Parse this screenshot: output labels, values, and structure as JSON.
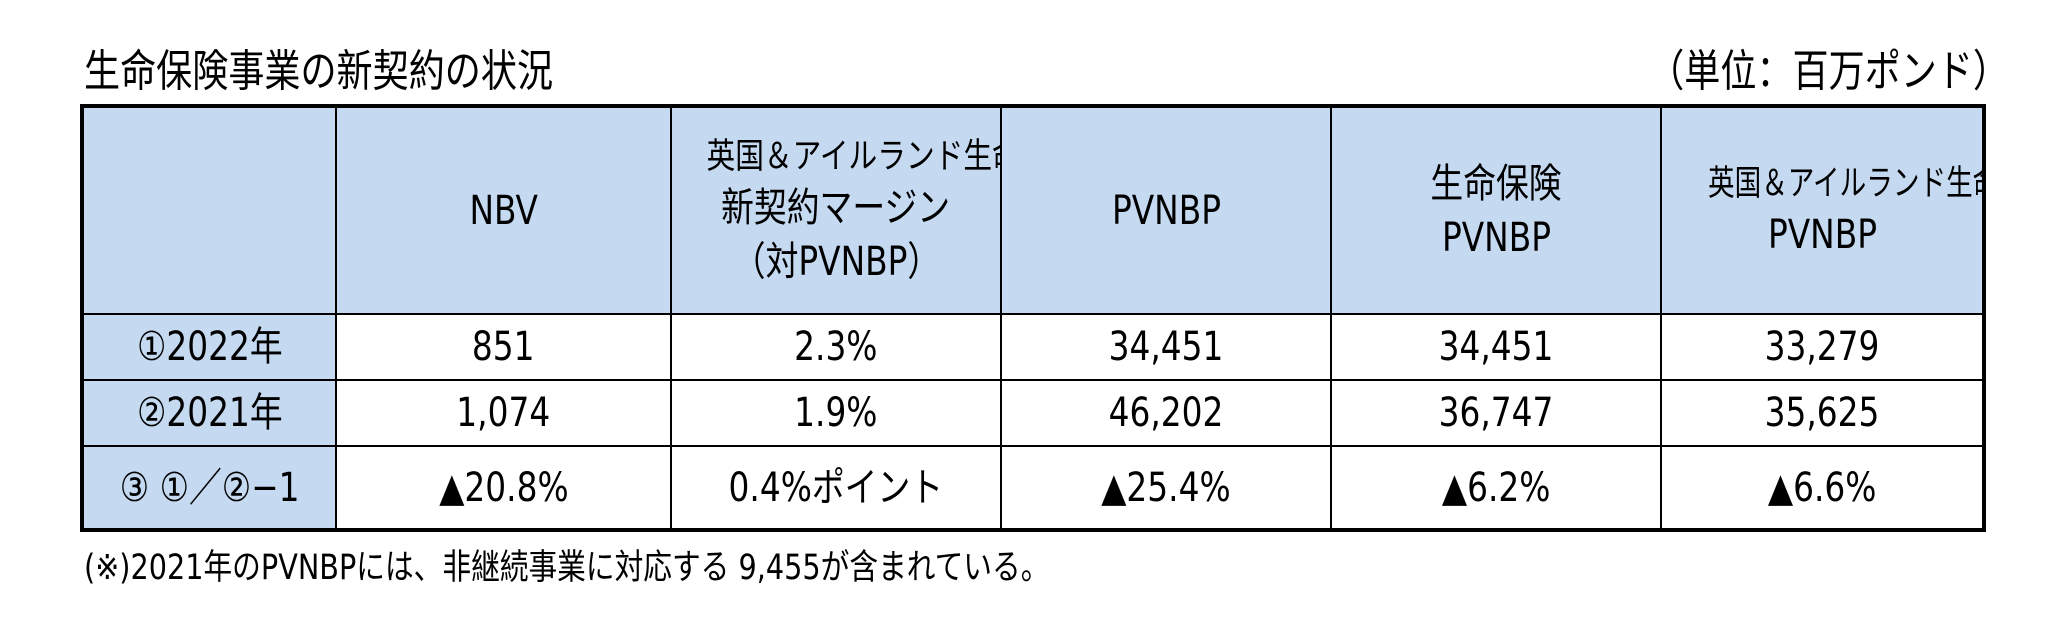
{
  "title": "生命保険事業の新契約の状況",
  "unit": "（単位：百万ポンド）",
  "table": {
    "headers": {
      "col1": "NBV",
      "col2": {
        "line1": "英国＆アイルランド生命",
        "line2": "新契約マージン",
        "line3": "（対PVNBP）"
      },
      "col3": "PVNBP",
      "col4": {
        "line1": "生命保険",
        "line2": "PVNBP"
      },
      "col5": {
        "line1": "英国＆アイルランド生命",
        "line2": "PVNBP"
      }
    },
    "rows": [
      {
        "label": "①2022年",
        "values": [
          "851",
          "2.3%",
          "34,451",
          "34,451",
          "33,279"
        ]
      },
      {
        "label": "②2021年",
        "values": [
          "1,074",
          "1.9%",
          "46,202",
          "36,747",
          "35,625"
        ]
      },
      {
        "label": "③ ①／②−1",
        "values": [
          "▲20.8%",
          "0.4%ポイント",
          "▲25.4%",
          "▲6.2%",
          "▲6.6%"
        ]
      }
    ]
  },
  "note": "(※)2021年のPVNBPには、非継続事業に対応する 9,455が含まれている。",
  "colors": {
    "header_fill": "#c5d9f1",
    "border": "#000000",
    "background": "#ffffff"
  }
}
